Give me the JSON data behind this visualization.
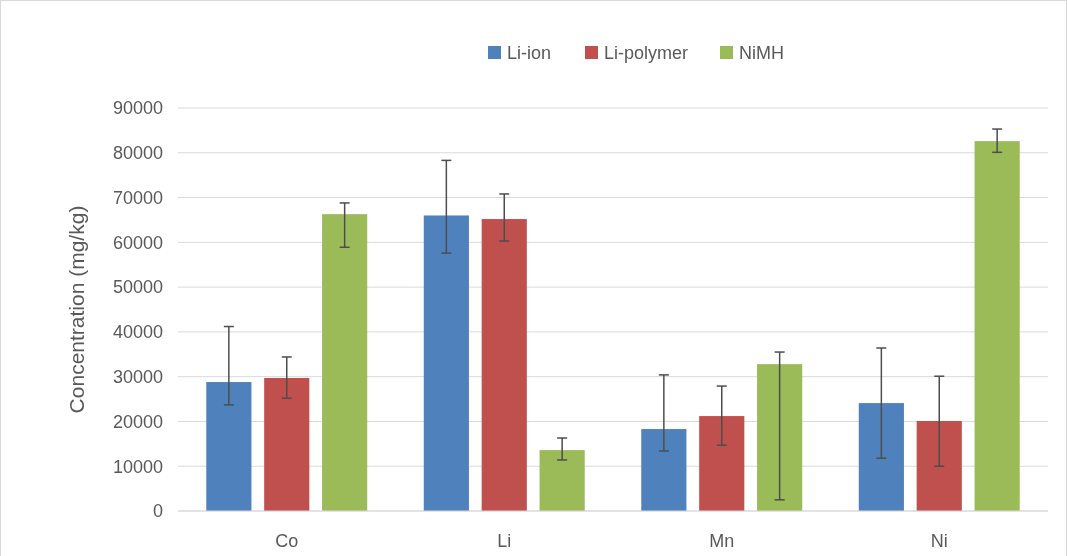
{
  "chart_data": {
    "type": "bar",
    "ylabel": "Concentration (mg/kg)",
    "categories": [
      "Co",
      "Li",
      "Mn",
      "Ni"
    ],
    "series": [
      {
        "name": "Li-ion",
        "color": "#4f81bd",
        "values": [
          28800,
          66000,
          18300,
          24100
        ],
        "errors": [
          [
            23700,
            41200
          ],
          [
            57600,
            78300
          ],
          [
            13400,
            30400
          ],
          [
            11800,
            36400
          ]
        ]
      },
      {
        "name": "Li-polymer",
        "color": "#c0504d",
        "values": [
          29700,
          65200,
          21200,
          20100
        ],
        "errors": [
          [
            25200,
            34400
          ],
          [
            60300,
            70800
          ],
          [
            14700,
            27900
          ],
          [
            10000,
            30100
          ]
        ]
      },
      {
        "name": "NiMH",
        "color": "#9bbb59",
        "values": [
          66300,
          13600,
          32800,
          82600
        ],
        "errors": [
          [
            58900,
            68800
          ],
          [
            11400,
            16300
          ],
          [
            2500,
            35500
          ],
          [
            80100,
            85300
          ]
        ]
      }
    ],
    "ylim": [
      0,
      90000
    ],
    "yticks": [
      0,
      10000,
      20000,
      30000,
      40000,
      50000,
      60000,
      70000,
      80000,
      90000
    ],
    "grid": "y",
    "legend": "top"
  }
}
